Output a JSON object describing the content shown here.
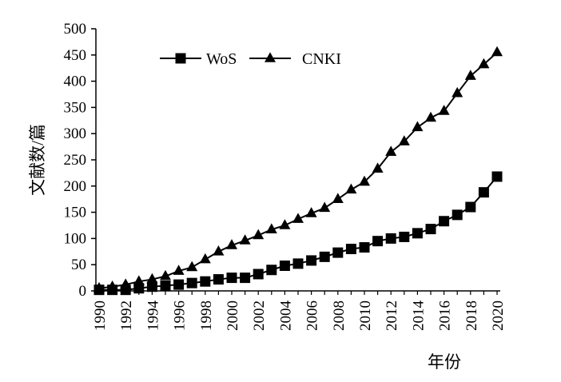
{
  "chart_data": {
    "type": "line",
    "xlabel": "年份",
    "ylabel": "文献数/篇",
    "xlim": [
      1990,
      2020
    ],
    "ylim": [
      0,
      500
    ],
    "grid": false,
    "legend_position": "top-center",
    "x_tick_labels": [
      "1990",
      "1992",
      "1994",
      "1996",
      "1998",
      "2000",
      "2002",
      "2004",
      "2006",
      "2008",
      "2010",
      "2012",
      "2014",
      "2016",
      "2018",
      "2020"
    ],
    "y_tick_labels": [
      "0",
      "50",
      "100",
      "150",
      "200",
      "250",
      "300",
      "350",
      "400",
      "450",
      "500"
    ],
    "x": [
      1990,
      1991,
      1992,
      1993,
      1994,
      1995,
      1996,
      1997,
      1998,
      1999,
      2000,
      2001,
      2002,
      2003,
      2004,
      2005,
      2006,
      2007,
      2008,
      2009,
      2010,
      2011,
      2012,
      2013,
      2014,
      2015,
      2016,
      2017,
      2018,
      2019,
      2020
    ],
    "series": [
      {
        "name": "WoS",
        "marker": "square",
        "values": [
          2,
          2,
          2,
          5,
          8,
          10,
          12,
          15,
          18,
          22,
          25,
          25,
          32,
          40,
          48,
          52,
          58,
          65,
          73,
          80,
          83,
          95,
          100,
          103,
          110,
          118,
          133,
          145,
          160,
          188,
          218
        ]
      },
      {
        "name": "CNKI",
        "marker": "triangle",
        "values": [
          5,
          8,
          12,
          18,
          22,
          28,
          38,
          45,
          60,
          75,
          87,
          96,
          106,
          117,
          125,
          137,
          148,
          158,
          175,
          193,
          208,
          233,
          265,
          285,
          312,
          330,
          343,
          377,
          410,
          432,
          455
        ]
      }
    ]
  }
}
